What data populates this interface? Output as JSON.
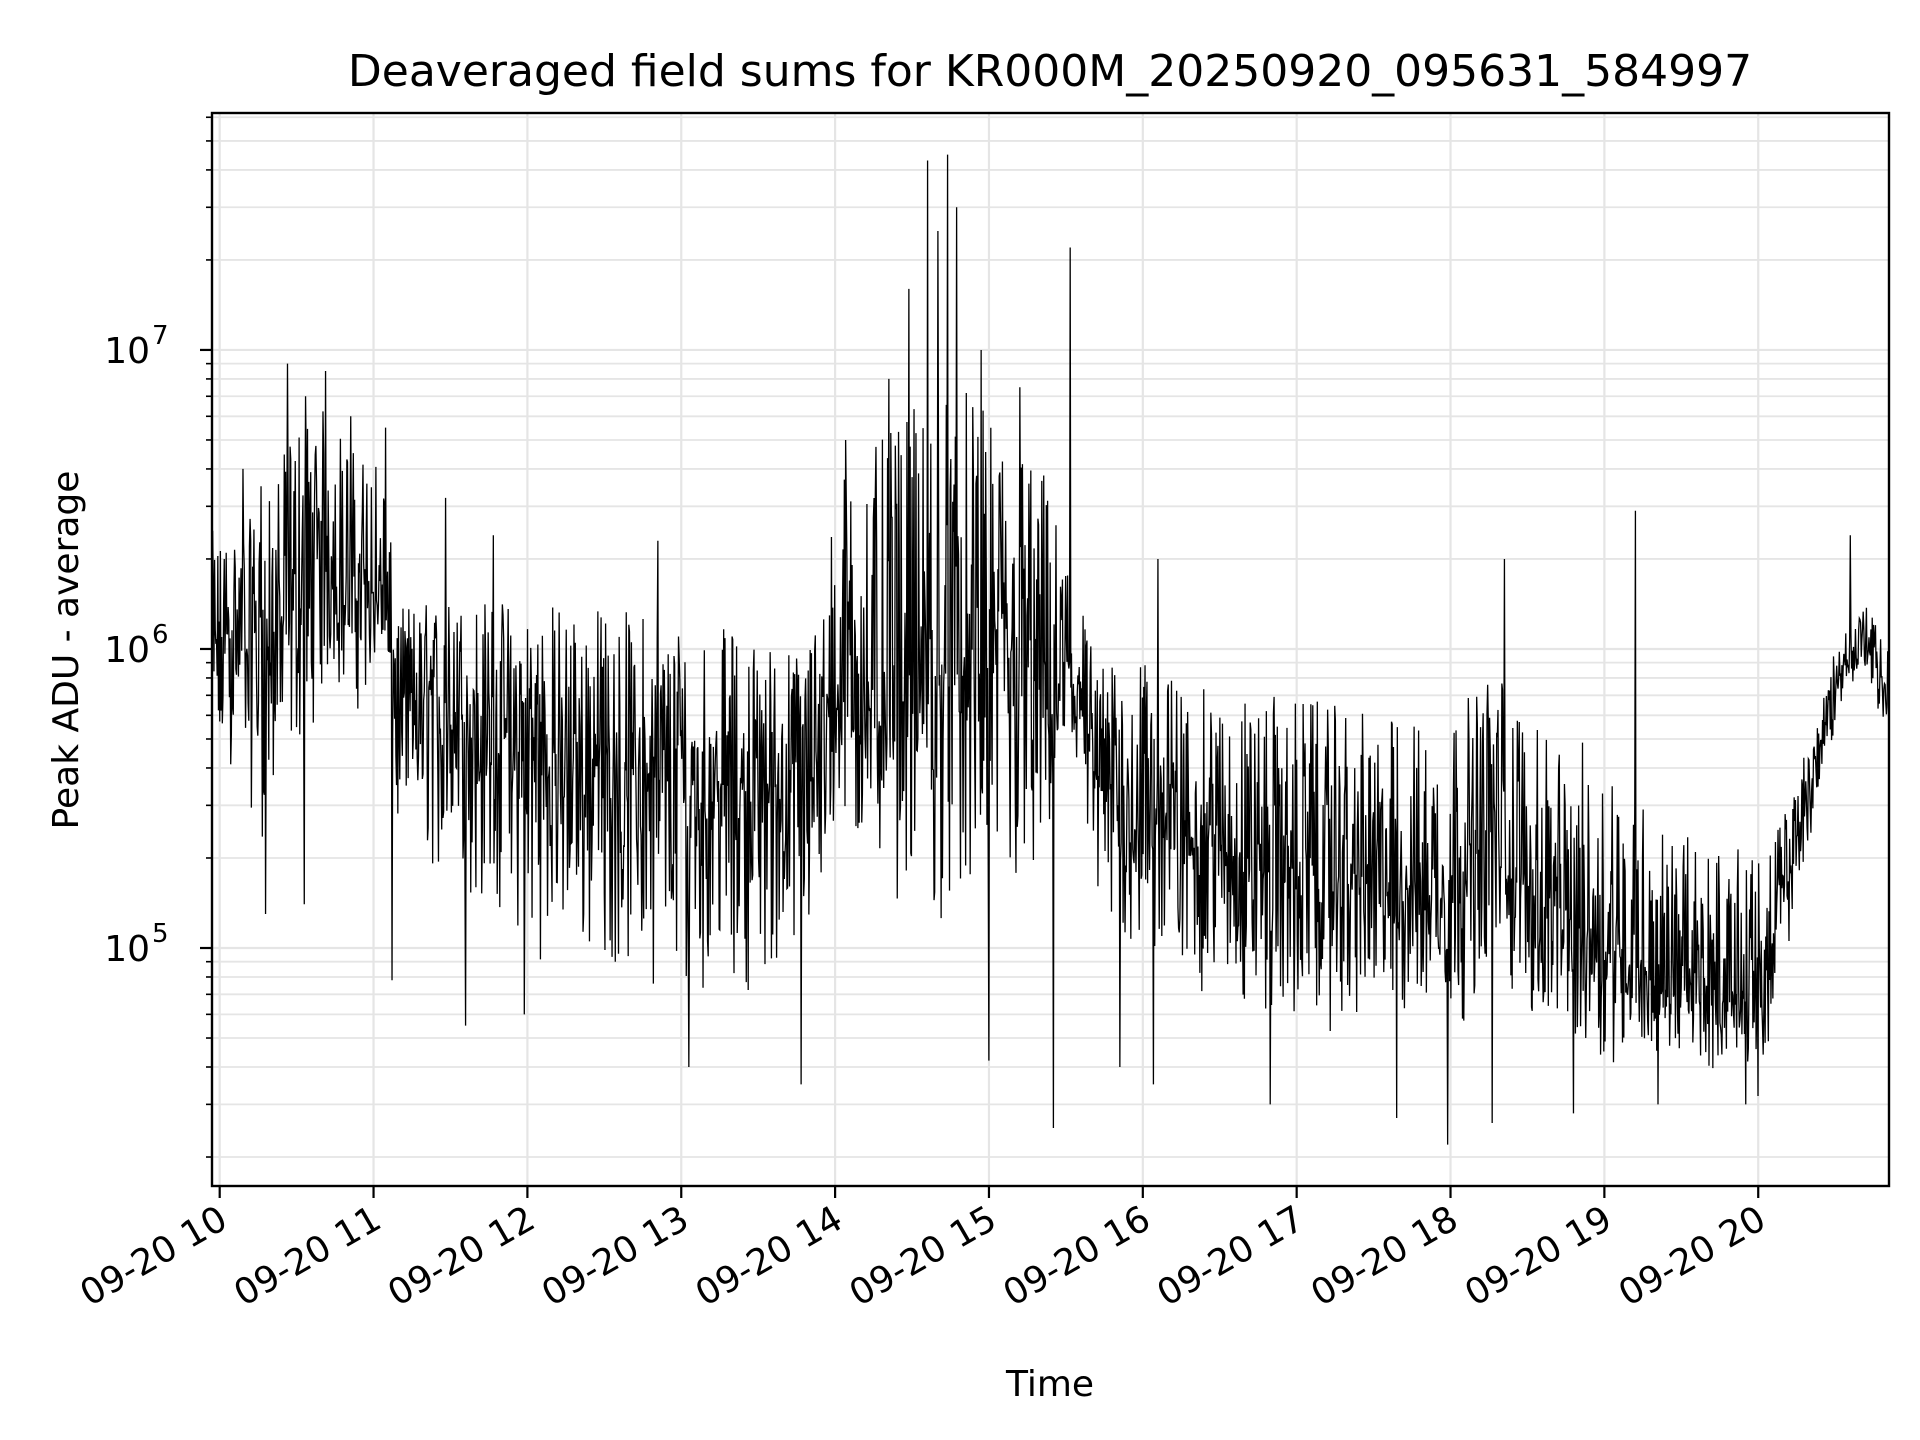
{
  "chart_data": {
    "type": "line",
    "title": "Deaveraged field sums for KR000M_20250920_095631_584997",
    "xlabel": "Time",
    "ylabel": "Peak ADU - average",
    "yscale": "log",
    "ylim": [
      16000,
      62000000
    ],
    "xlim_hours": [
      9.95,
      20.85
    ],
    "grid": true,
    "y_ticks": [
      {
        "value": 100000,
        "base": "10",
        "exp": "5"
      },
      {
        "value": 1000000,
        "base": "10",
        "exp": "6"
      },
      {
        "value": 10000000,
        "base": "10",
        "exp": "7"
      }
    ],
    "x_ticks": [
      {
        "hour": 10,
        "label": "09-20 10"
      },
      {
        "hour": 11,
        "label": "09-20 11"
      },
      {
        "hour": 12,
        "label": "09-20 12"
      },
      {
        "hour": 13,
        "label": "09-20 13"
      },
      {
        "hour": 14,
        "label": "09-20 14"
      },
      {
        "hour": 15,
        "label": "09-20 15"
      },
      {
        "hour": 16,
        "label": "09-20 16"
      },
      {
        "hour": 17,
        "label": "09-20 17"
      },
      {
        "hour": 18,
        "label": "09-20 18"
      },
      {
        "hour": 19,
        "label": "09-20 19"
      },
      {
        "hour": 20,
        "label": "09-20 20"
      }
    ],
    "series": [
      {
        "name": "deaveraged field sum",
        "color": "#000000",
        "envelope": [
          {
            "hour": 9.95,
            "low": 250000,
            "mid": 900000,
            "high": 2500000
          },
          {
            "hour": 10.1,
            "low": 400000,
            "mid": 1200000,
            "high": 2500000
          },
          {
            "hour": 10.3,
            "low": 200000,
            "mid": 1000000,
            "high": 3000000
          },
          {
            "hour": 10.5,
            "low": 400000,
            "mid": 1600000,
            "high": 6000000
          },
          {
            "hour": 10.7,
            "low": 700000,
            "mid": 2000000,
            "high": 6500000
          },
          {
            "hour": 10.9,
            "low": 600000,
            "mid": 1600000,
            "high": 4500000
          },
          {
            "hour": 11.05,
            "low": 900000,
            "mid": 1500000,
            "high": 5000000
          },
          {
            "hour": 11.15,
            "low": 200000,
            "mid": 700000,
            "high": 1400000
          },
          {
            "hour": 11.5,
            "low": 150000,
            "mid": 600000,
            "high": 1500000
          },
          {
            "hour": 12.0,
            "low": 90000,
            "mid": 450000,
            "high": 1500000
          },
          {
            "hour": 12.5,
            "low": 80000,
            "mid": 400000,
            "high": 1400000
          },
          {
            "hour": 13.0,
            "low": 70000,
            "mid": 350000,
            "high": 1300000
          },
          {
            "hour": 13.5,
            "low": 70000,
            "mid": 350000,
            "high": 1100000
          },
          {
            "hour": 13.8,
            "low": 80000,
            "mid": 350000,
            "high": 1000000
          },
          {
            "hour": 14.05,
            "low": 200000,
            "mid": 800000,
            "high": 4000000
          },
          {
            "hour": 14.3,
            "low": 150000,
            "mid": 700000,
            "high": 5000000
          },
          {
            "hour": 14.6,
            "low": 120000,
            "mid": 700000,
            "high": 7000000
          },
          {
            "hour": 14.8,
            "low": 100000,
            "mid": 800000,
            "high": 8000000
          },
          {
            "hour": 15.0,
            "low": 100000,
            "mid": 900000,
            "high": 6000000
          },
          {
            "hour": 15.3,
            "low": 120000,
            "mid": 800000,
            "high": 5000000
          },
          {
            "hour": 15.55,
            "low": 300000,
            "mid": 900000,
            "high": 2000000
          },
          {
            "hour": 15.7,
            "low": 100000,
            "mid": 350000,
            "high": 900000
          },
          {
            "hour": 16.0,
            "low": 80000,
            "mid": 300000,
            "high": 900000
          },
          {
            "hour": 16.5,
            "low": 60000,
            "mid": 220000,
            "high": 700000
          },
          {
            "hour": 17.0,
            "low": 50000,
            "mid": 180000,
            "high": 700000
          },
          {
            "hour": 17.5,
            "low": 50000,
            "mid": 170000,
            "high": 600000
          },
          {
            "hour": 18.0,
            "low": 50000,
            "mid": 160000,
            "high": 600000
          },
          {
            "hour": 18.3,
            "low": 70000,
            "mid": 250000,
            "high": 900000
          },
          {
            "hour": 18.6,
            "low": 50000,
            "mid": 130000,
            "high": 500000
          },
          {
            "hour": 19.0,
            "low": 40000,
            "mid": 110000,
            "high": 500000
          },
          {
            "hour": 19.4,
            "low": 42000,
            "mid": 75000,
            "high": 250000
          },
          {
            "hour": 19.8,
            "low": 38000,
            "mid": 70000,
            "high": 220000
          },
          {
            "hour": 20.05,
            "low": 40000,
            "mid": 80000,
            "high": 200000
          },
          {
            "hour": 20.3,
            "low": 180000,
            "mid": 300000,
            "high": 450000
          },
          {
            "hour": 20.55,
            "low": 700000,
            "mid": 900000,
            "high": 1200000
          },
          {
            "hour": 20.7,
            "low": 800000,
            "mid": 1100000,
            "high": 1400000
          },
          {
            "hour": 20.85,
            "low": 400000,
            "mid": 700000,
            "high": 1000000
          }
        ],
        "spikes": [
          {
            "hour": 10.03,
            "value": 2000000
          },
          {
            "hour": 10.15,
            "value": 4000000
          },
          {
            "hour": 10.27,
            "value": 3500000
          },
          {
            "hour": 10.44,
            "value": 9000000
          },
          {
            "hour": 10.56,
            "value": 7000000
          },
          {
            "hour": 10.69,
            "value": 8500000
          },
          {
            "hour": 10.85,
            "value": 6000000
          },
          {
            "hour": 11.08,
            "value": 5500000
          },
          {
            "hour": 11.47,
            "value": 3200000
          },
          {
            "hour": 11.78,
            "value": 2400000
          },
          {
            "hour": 12.85,
            "value": 2300000
          },
          {
            "hour": 14.07,
            "value": 5000000
          },
          {
            "hour": 14.35,
            "value": 8000000
          },
          {
            "hour": 14.48,
            "value": 16000000
          },
          {
            "hour": 14.6,
            "value": 43000000
          },
          {
            "hour": 14.67,
            "value": 25000000
          },
          {
            "hour": 14.73,
            "value": 45000000
          },
          {
            "hour": 14.79,
            "value": 30000000
          },
          {
            "hour": 14.95,
            "value": 10000000
          },
          {
            "hour": 15.2,
            "value": 7500000
          },
          {
            "hour": 15.53,
            "value": 22000000
          },
          {
            "hour": 16.1,
            "value": 2000000
          },
          {
            "hour": 18.35,
            "value": 2000000
          },
          {
            "hour": 19.2,
            "value": 2900000
          },
          {
            "hour": 20.6,
            "value": 2400000
          }
        ],
        "dips": [
          {
            "hour": 10.3,
            "value": 130000
          },
          {
            "hour": 10.55,
            "value": 140000
          },
          {
            "hour": 11.12,
            "value": 78000
          },
          {
            "hour": 11.6,
            "value": 55000
          },
          {
            "hour": 11.98,
            "value": 60000
          },
          {
            "hour": 13.05,
            "value": 40000
          },
          {
            "hour": 13.78,
            "value": 35000
          },
          {
            "hour": 15.0,
            "value": 42000
          },
          {
            "hour": 15.42,
            "value": 25000
          },
          {
            "hour": 15.85,
            "value": 40000
          },
          {
            "hour": 16.07,
            "value": 35000
          },
          {
            "hour": 16.83,
            "value": 30000
          },
          {
            "hour": 17.65,
            "value": 27000
          },
          {
            "hour": 17.98,
            "value": 22000
          },
          {
            "hour": 18.27,
            "value": 26000
          },
          {
            "hour": 18.8,
            "value": 28000
          },
          {
            "hour": 19.35,
            "value": 30000
          },
          {
            "hour": 19.92,
            "value": 30000
          },
          {
            "hour": 20.0,
            "value": 32000
          }
        ]
      }
    ]
  }
}
